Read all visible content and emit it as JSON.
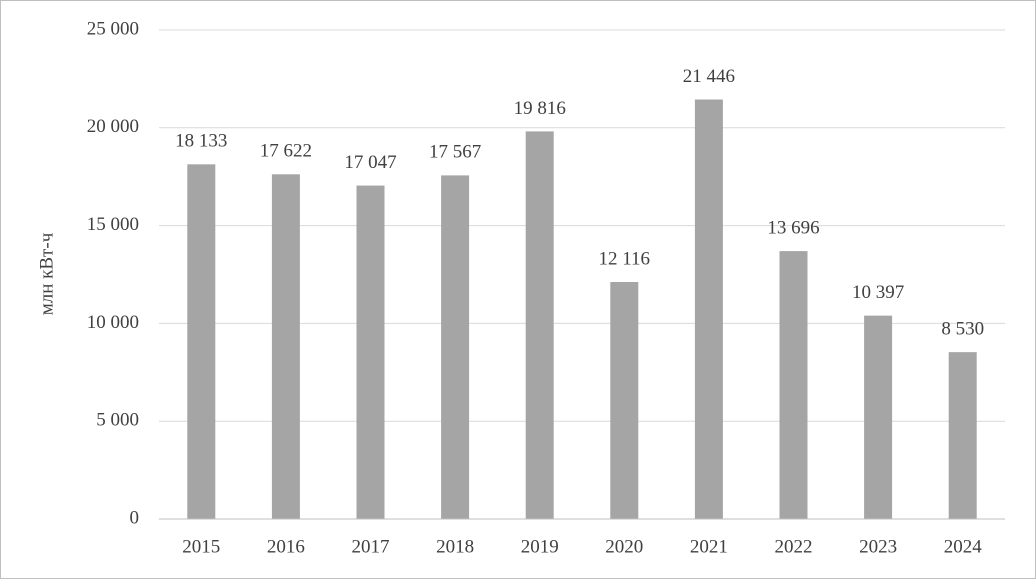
{
  "chart_data": {
    "type": "bar",
    "y_label": "млн кВт-ч",
    "categories": [
      "2015",
      "2016",
      "2017",
      "2018",
      "2019",
      "2020",
      "2021",
      "2022",
      "2023",
      "2024"
    ],
    "values": [
      18133,
      17622,
      17047,
      17567,
      19816,
      12116,
      21446,
      13696,
      10397,
      8530
    ],
    "value_labels": [
      "18 133",
      "17 622",
      "17 047",
      "17 567",
      "19 816",
      "12 116",
      "21 446",
      "13 696",
      "10 397",
      "8 530"
    ],
    "color": "#a5a5a5",
    "ylim": [
      0,
      25000
    ],
    "yticks": [
      0,
      {
        "value": 5000,
        "label": "5 000"
      },
      {
        "value": 10000,
        "label": "10 000"
      },
      {
        "value": 15000,
        "label": "15 000"
      },
      {
        "value": 20000,
        "label": "20 000"
      },
      {
        "value": 25000,
        "label": "25 000"
      }
    ],
    "grid": true
  }
}
